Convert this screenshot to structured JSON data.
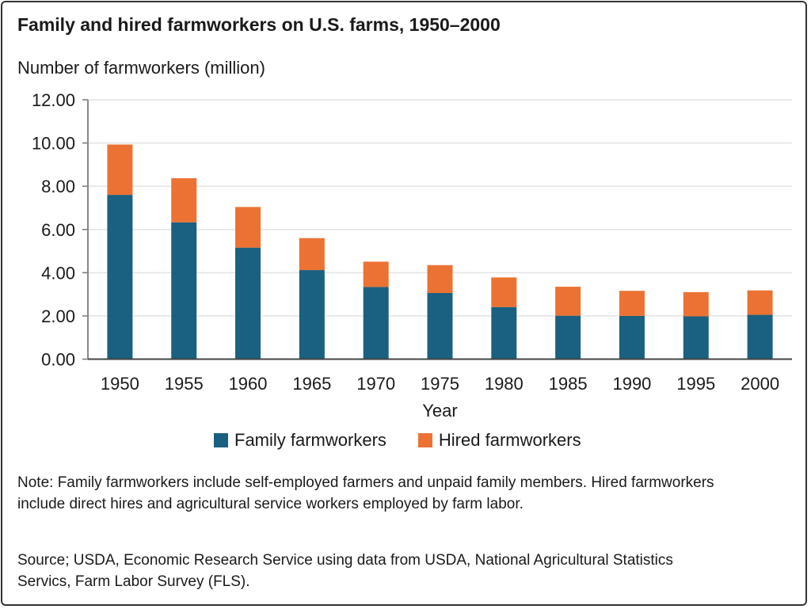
{
  "chart_data": {
    "type": "bar",
    "stacked": true,
    "title": "Family and hired farmworkers on U.S. farms, 1950–2000",
    "ylabel": "Number of farmworkers (million)",
    "xlabel": "Year",
    "ylim": [
      0,
      12
    ],
    "yticks": [
      "0.00",
      "2.00",
      "4.00",
      "6.00",
      "8.00",
      "10.00",
      "12.00"
    ],
    "ytick_values": [
      0,
      2,
      4,
      6,
      8,
      10,
      12
    ],
    "grid": true,
    "legend_position": "bottom",
    "categories": [
      "1950",
      "1955",
      "1960",
      "1965",
      "1970",
      "1975",
      "1980",
      "1985",
      "1990",
      "1995",
      "2000"
    ],
    "series": [
      {
        "name": "Family farmworkers",
        "color": "#1a6080",
        "values": [
          7.6,
          6.33,
          5.16,
          4.12,
          3.34,
          3.06,
          2.41,
          2.01,
          2.0,
          1.98,
          2.05
        ]
      },
      {
        "name": "Hired farmworkers",
        "color": "#eb7233",
        "values": [
          2.33,
          2.04,
          1.88,
          1.48,
          1.17,
          1.29,
          1.37,
          1.34,
          1.16,
          1.12,
          1.13
        ]
      }
    ]
  },
  "note": "Note: Family farmworkers include self-employed farmers and unpaid family members. Hired farmworkers include direct hires and agricultural service workers employed by farm labor.",
  "source": "Source; USDA, Economic Research Service using data from USDA, National Agricultural Statistics Servics, Farm Labor Survey (FLS)."
}
